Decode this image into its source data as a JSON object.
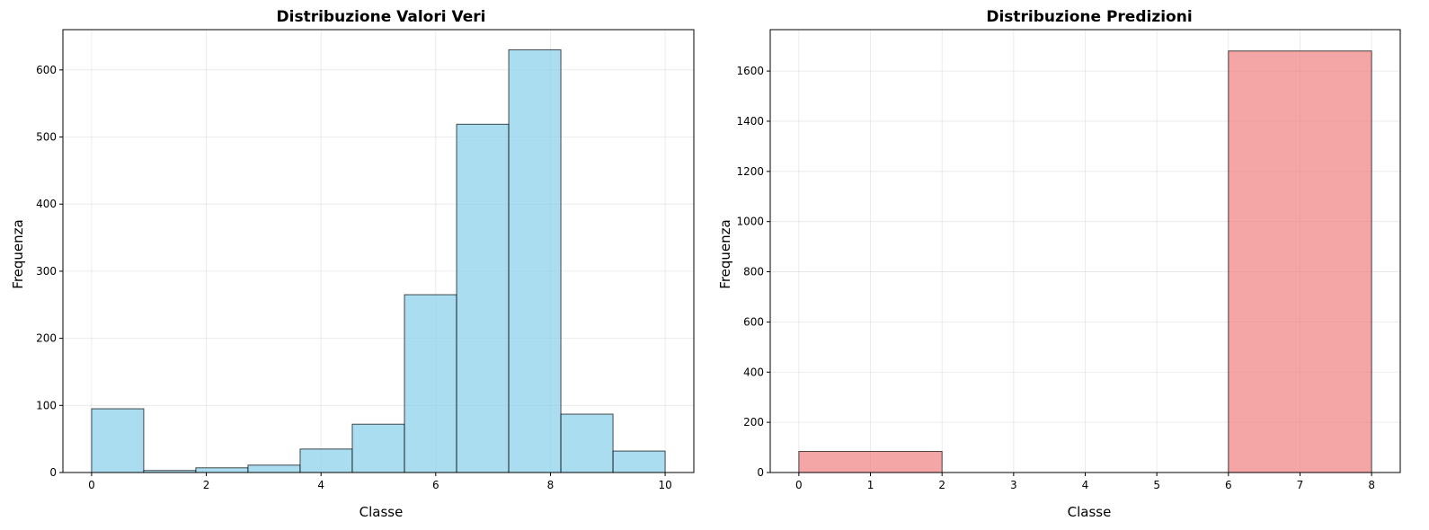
{
  "chart_data": [
    {
      "type": "bar",
      "title": "Distribuzione Valori Veri",
      "xlabel": "Classe",
      "ylabel": "Frequenza",
      "color": "#87ceeb",
      "edge_color": "#000000",
      "xlim": [
        -0.5,
        10.5
      ],
      "ylim": [
        0,
        660
      ],
      "xticks": [
        0,
        2,
        4,
        6,
        8,
        10
      ],
      "yticks": [
        0,
        100,
        200,
        300,
        400,
        500,
        600
      ],
      "grid": true,
      "bins": [
        {
          "x0": 0.0,
          "x1": 0.909,
          "value": 95
        },
        {
          "x0": 0.909,
          "x1": 1.818,
          "value": 3
        },
        {
          "x0": 1.818,
          "x1": 2.727,
          "value": 7
        },
        {
          "x0": 2.727,
          "x1": 3.636,
          "value": 11
        },
        {
          "x0": 3.636,
          "x1": 4.545,
          "value": 35
        },
        {
          "x0": 4.545,
          "x1": 5.455,
          "value": 72
        },
        {
          "x0": 5.455,
          "x1": 6.364,
          "value": 265
        },
        {
          "x0": 6.364,
          "x1": 7.273,
          "value": 519
        },
        {
          "x0": 7.273,
          "x1": 8.182,
          "value": 630
        },
        {
          "x0": 8.182,
          "x1": 9.091,
          "value": 87
        },
        {
          "x0": 9.091,
          "x1": 10.0,
          "value": 32
        }
      ]
    },
    {
      "type": "bar",
      "title": "Distribuzione Predizioni",
      "xlabel": "Classe",
      "ylabel": "Frequenza",
      "color": "#f08080",
      "edge_color": "#000000",
      "xlim": [
        -0.4,
        8.4
      ],
      "ylim": [
        0,
        1765
      ],
      "xticks": [
        0,
        1,
        2,
        3,
        4,
        5,
        6,
        7,
        8
      ],
      "yticks": [
        0,
        200,
        400,
        600,
        800,
        1000,
        1200,
        1400,
        1600
      ],
      "grid": true,
      "bins": [
        {
          "x0": 0,
          "x1": 2,
          "value": 84
        },
        {
          "x0": 2,
          "x1": 4,
          "value": 0
        },
        {
          "x0": 4,
          "x1": 6,
          "value": 0
        },
        {
          "x0": 6,
          "x1": 8,
          "value": 1680
        }
      ]
    }
  ]
}
